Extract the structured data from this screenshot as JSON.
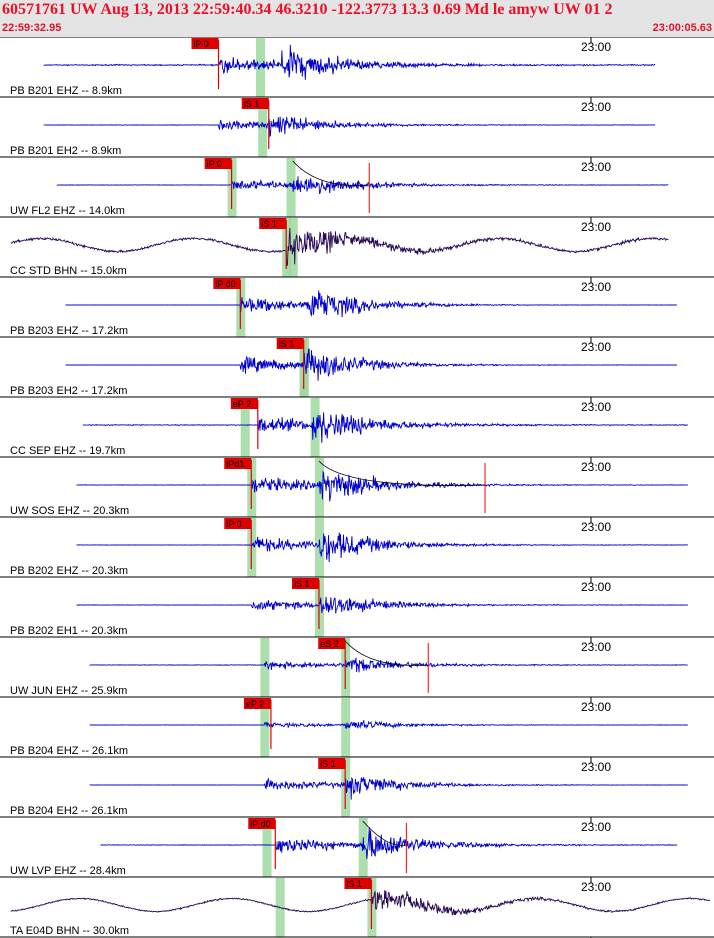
{
  "header": {
    "title": "60571761 UW Aug 13, 2013 22:59:40.34   46.3210 -122.3773 13.3 0.69 Md le amyw UW 01   2",
    "start_time": "22:59:32.95",
    "end_time": "23:00:05.63"
  },
  "colors": {
    "header_bg": "#e4e4e4",
    "header_text": "#e8102a",
    "trace_blue": "#0000cc",
    "trace_dark": "#2a0a55",
    "pick_red": "#e00000",
    "window_green": "#9fd89f",
    "fit_red": "#ff0000"
  },
  "chart_data": {
    "type": "line",
    "x_unit": "seconds after 22:59:32.95",
    "xlim": [
      0,
      32.68
    ],
    "tick_label": "23:00",
    "tick_time": 27.05,
    "traces": [
      {
        "label": "PB B201 EHZ -- 8.9km",
        "pick": "iP 0",
        "pick_time": 10.0,
        "window_time": 11.9,
        "onset": 10.0,
        "s_time": 12.9,
        "coda_end": 30.0,
        "noise": 0.2,
        "amp": 1.0,
        "color": "blue",
        "has_fit": false,
        "fit_time": null
      },
      {
        "label": "PB B201 EH2 -- 8.9km",
        "pick": "iS 1",
        "pick_time": 12.3,
        "window_time": 12.0,
        "onset": 10.0,
        "s_time": 12.3,
        "coda_end": 30.0,
        "noise": 0.08,
        "amp": 0.6,
        "color": "blue",
        "has_fit": false,
        "fit_time": null
      },
      {
        "label": "UW FL2 EHZ -- 14.0km",
        "pick": "iP 0",
        "pick_time": 10.6,
        "window_time": 10.6,
        "onset": 10.6,
        "s_time": 13.4,
        "coda_end": 30.6,
        "noise": 0.08,
        "amp": 0.7,
        "color": "blue",
        "has_fit": true,
        "fit_time": 16.9
      },
      {
        "label": "CC STD BHN -- 15.0km",
        "pick": "iS 1",
        "pick_time": 13.1,
        "window_time": 13.1,
        "onset": 13.1,
        "s_time": 13.1,
        "coda_end": 30.6,
        "noise": 0.45,
        "amp": 0.8,
        "color": "dark",
        "has_fit": false,
        "fit_time": null
      },
      {
        "label": "PB B203 EHZ -- 17.2km",
        "pick": "iP d0",
        "pick_time": 11.0,
        "window_time": 11.0,
        "onset": 11.0,
        "s_time": 14.0,
        "coda_end": 31.0,
        "noise": 0.03,
        "amp": 1.0,
        "color": "blue",
        "has_fit": false,
        "fit_time": null
      },
      {
        "label": "PB B203 EH2 -- 17.2km",
        "pick": "iS 1",
        "pick_time": 13.9,
        "window_time": 13.9,
        "onset": 11.0,
        "s_time": 13.9,
        "coda_end": 31.0,
        "noise": 0.03,
        "amp": 1.0,
        "color": "blue",
        "has_fit": false,
        "fit_time": null
      },
      {
        "label": "CC SEP EHZ -- 19.7km",
        "pick": "eP 2",
        "pick_time": 11.8,
        "window_time": 11.2,
        "onset": 11.8,
        "s_time": 14.3,
        "coda_end": 31.5,
        "noise": 0.15,
        "amp": 1.0,
        "color": "blue",
        "has_fit": false,
        "fit_time": null
      },
      {
        "label": "UW SOS EHZ -- 20.3km",
        "pick": "iPd1",
        "pick_time": 11.5,
        "window_time": 11.5,
        "onset": 11.5,
        "s_time": 14.6,
        "coda_end": 31.5,
        "noise": 0.08,
        "amp": 1.0,
        "color": "blue",
        "has_fit": true,
        "fit_time": 22.2
      },
      {
        "label": "PB B202 EHZ -- 20.3km",
        "pick": "iP 0",
        "pick_time": 11.5,
        "window_time": 11.5,
        "onset": 11.5,
        "s_time": 14.6,
        "coda_end": 31.5,
        "noise": 0.08,
        "amp": 1.0,
        "color": "blue",
        "has_fit": false,
        "fit_time": null
      },
      {
        "label": "PB B202 EH1 -- 20.3km",
        "pick": "iS 1",
        "pick_time": 14.6,
        "window_time": 14.6,
        "onset": 11.5,
        "s_time": 14.6,
        "coda_end": 31.5,
        "noise": 0.08,
        "amp": 0.7,
        "color": "blue",
        "has_fit": false,
        "fit_time": null
      },
      {
        "label": "UW JUN EHZ -- 25.9km",
        "pick": "eS 2",
        "pick_time": 15.8,
        "window_time": 12.1,
        "onset": 12.1,
        "s_time": 15.8,
        "coda_end": 31.5,
        "noise": 0.1,
        "amp": 0.5,
        "color": "blue",
        "has_fit": true,
        "fit_time": 19.6
      },
      {
        "label": "PB B204 EHZ -- 26.1km",
        "pick": "eP 2",
        "pick_time": 12.4,
        "window_time": 12.1,
        "onset": 12.1,
        "s_time": 15.8,
        "coda_end": 31.5,
        "noise": 0.05,
        "amp": 0.3,
        "color": "blue",
        "has_fit": false,
        "fit_time": null
      },
      {
        "label": "PB B204 EH2 -- 26.1km",
        "pick": "iS 1",
        "pick_time": 15.8,
        "window_time": 15.8,
        "onset": 12.1,
        "s_time": 15.8,
        "coda_end": 31.5,
        "noise": 0.05,
        "amp": 0.7,
        "color": "blue",
        "has_fit": false,
        "fit_time": null
      },
      {
        "label": "UW LVP EHZ -- 28.4km",
        "pick": "iP d0",
        "pick_time": 12.6,
        "window_time": 12.2,
        "onset": 12.6,
        "s_time": 16.6,
        "coda_end": 31.0,
        "noise": 0.1,
        "amp": 1.0,
        "color": "blue",
        "has_fit": true,
        "fit_time": 18.6
      },
      {
        "label": "TA E04D BHN -- 30.0km",
        "pick": "iS 1",
        "pick_time": 17.0,
        "window_time": 12.8,
        "onset": 17.0,
        "s_time": 17.0,
        "coda_end": 32.5,
        "noise": 0.25,
        "amp": 0.6,
        "color": "dark",
        "has_fit": false,
        "fit_time": null
      },
      {
        "label": "",
        "pick": "",
        "pick_time": null,
        "window_time": null,
        "onset": 0,
        "s_time": 0,
        "coda_end": 0,
        "noise": 0,
        "amp": 0,
        "color": "dark",
        "has_fit": false,
        "fit_time": null
      }
    ],
    "extra_windows": [
      {
        "trace": 2,
        "time": 13.3
      },
      {
        "trace": 3,
        "time": 13.4
      },
      {
        "trace": 5,
        "time": 13.9
      },
      {
        "trace": 6,
        "time": 14.4
      },
      {
        "trace": 7,
        "time": 14.6
      },
      {
        "trace": 8,
        "time": 14.6
      },
      {
        "trace": 10,
        "time": 15.8
      },
      {
        "trace": 11,
        "time": 15.8
      },
      {
        "trace": 13,
        "time": 16.6
      },
      {
        "trace": 14,
        "time": 17.0
      }
    ]
  }
}
